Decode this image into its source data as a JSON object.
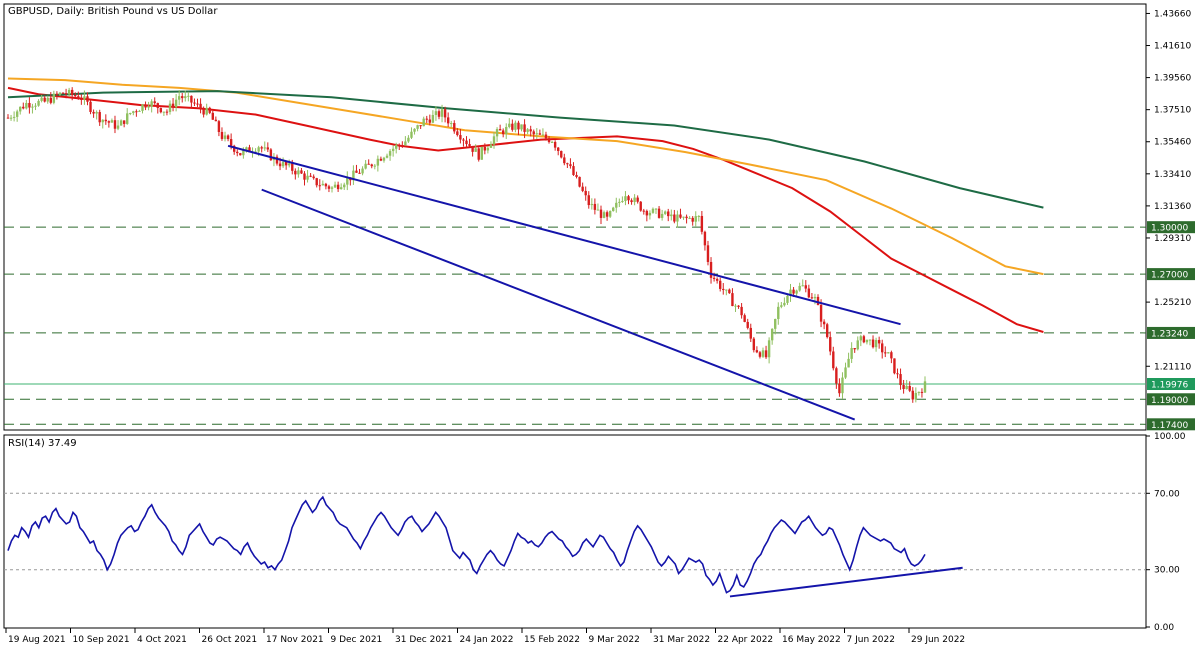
{
  "chart_data": [
    {
      "type": "candlestick",
      "title": "GBPUSD, Daily:  British Pound vs US Dollar",
      "y_range": [
        1.171,
        1.442
      ],
      "y_ticks": [
        "1.43660",
        "1.41610",
        "1.39560",
        "1.37510",
        "1.35460",
        "1.33410",
        "1.31360",
        "1.29310",
        "1.25210",
        "1.21110"
      ],
      "x_labels": [
        "19 Aug 2021",
        "10 Sep 2021",
        "4 Oct 2021",
        "26 Oct 2021",
        "17 Nov 2021",
        "9 Dec 2021",
        "31 Dec 2021",
        "24 Jan 2022",
        "15 Feb 2022",
        "9 Mar 2022",
        "31 Mar 2022",
        "22 Apr 2022",
        "16 May 2022",
        "7 Jun 2022",
        "29 Jun 2022"
      ],
      "horizontal_levels": [
        {
          "value": 1.3,
          "label": "1.30000"
        },
        {
          "value": 1.27,
          "label": "1.27000"
        },
        {
          "value": 1.2324,
          "label": "1.23240"
        },
        {
          "value": 1.19,
          "label": "1.19000"
        },
        {
          "value": 1.174,
          "label": "1.17400"
        }
      ],
      "current_price": {
        "value": 1.19976,
        "label": "1.19976"
      },
      "colors": {
        "up": "#90c060",
        "down": "#d81e1e",
        "ma_fast": "#dd1111",
        "ma_mid": "#f5a623",
        "ma_slow": "#1e6b45",
        "channel": "#1414aa",
        "level_fill": "#2d6b2d",
        "current_fill": "#1f9a5c",
        "current_line": "#3cb371"
      },
      "moving_averages": [
        {
          "color": "#dd1111",
          "points": [
            [
              0,
              1.389
            ],
            [
              8,
              1.385
            ],
            [
              20,
              1.382
            ],
            [
              35,
              1.378
            ],
            [
              50,
              1.376
            ],
            [
              65,
              1.372
            ],
            [
              80,
              1.364
            ],
            [
              95,
              1.356
            ],
            [
              103,
              1.352
            ],
            [
              113,
              1.349
            ],
            [
              125,
              1.352
            ],
            [
              140,
              1.356
            ],
            [
              160,
              1.358
            ],
            [
              172,
              1.355
            ],
            [
              180,
              1.35
            ],
            [
              188,
              1.343
            ],
            [
              196,
              1.335
            ],
            [
              206,
              1.325
            ],
            [
              216,
              1.31
            ],
            [
              224,
              1.295
            ],
            [
              232,
              1.28
            ],
            [
              240,
              1.27
            ],
            [
              248,
              1.26
            ],
            [
              256,
              1.25
            ],
            [
              265,
              1.238
            ],
            [
              272,
              1.233
            ]
          ]
        },
        {
          "color": "#f5a623",
          "points": [
            [
              0,
              1.395
            ],
            [
              15,
              1.394
            ],
            [
              30,
              1.391
            ],
            [
              45,
              1.389
            ],
            [
              60,
              1.386
            ],
            [
              75,
              1.38
            ],
            [
              90,
              1.374
            ],
            [
              105,
              1.368
            ],
            [
              120,
              1.362
            ],
            [
              140,
              1.358
            ],
            [
              160,
              1.355
            ],
            [
              178,
              1.348
            ],
            [
              195,
              1.34
            ],
            [
              215,
              1.33
            ],
            [
              232,
              1.312
            ],
            [
              248,
              1.293
            ],
            [
              262,
              1.275
            ],
            [
              272,
              1.27
            ]
          ]
        },
        {
          "color": "#1e6b45",
          "points": [
            [
              0,
              1.383
            ],
            [
              25,
              1.386
            ],
            [
              55,
              1.387
            ],
            [
              85,
              1.383
            ],
            [
              115,
              1.376
            ],
            [
              145,
              1.37
            ],
            [
              175,
              1.365
            ],
            [
              200,
              1.356
            ],
            [
              225,
              1.342
            ],
            [
              250,
              1.325
            ],
            [
              272,
              1.3125
            ]
          ]
        }
      ],
      "channel_lines": [
        {
          "from": [
            72,
            1.352
          ],
          "to": [
            292,
            1.238
          ]
        },
        {
          "from": [
            83,
            1.324
          ],
          "to": [
            277,
            1.177
          ]
        }
      ]
    },
    {
      "type": "line",
      "title": "RSI(14) 37.49",
      "y_range": [
        0,
        100
      ],
      "y_ticks": [
        "100.00",
        "70.00",
        "30.00",
        "0.00"
      ],
      "levels": [
        70,
        30
      ],
      "trend_line": {
        "from": [
          211,
          16
        ],
        "to": [
          279,
          31
        ]
      },
      "values": [
        40,
        45,
        48,
        47,
        52,
        50,
        47,
        53,
        55,
        52,
        57,
        58,
        55,
        60,
        62,
        58,
        56,
        54,
        55,
        60,
        58,
        52,
        50,
        47,
        44,
        45,
        40,
        38,
        35,
        30,
        33,
        38,
        44,
        48,
        50,
        52,
        53,
        50,
        51,
        55,
        58,
        62,
        64,
        60,
        57,
        55,
        53,
        50,
        45,
        43,
        40,
        38,
        42,
        48,
        50,
        52,
        54,
        50,
        47,
        44,
        43,
        46,
        47,
        46,
        45,
        43,
        41,
        40,
        38,
        42,
        44,
        40,
        37,
        35,
        33,
        34,
        31,
        32,
        30,
        33,
        35,
        40,
        45,
        52,
        56,
        60,
        64,
        66,
        63,
        60,
        62,
        66,
        68,
        64,
        62,
        60,
        56,
        54,
        53,
        52,
        49,
        46,
        44,
        41,
        45,
        48,
        52,
        55,
        58,
        60,
        58,
        55,
        52,
        50,
        48,
        51,
        55,
        57,
        58,
        55,
        53,
        50,
        52,
        54,
        57,
        60,
        58,
        55,
        52,
        46,
        40,
        38,
        36,
        39,
        37,
        35,
        30,
        28,
        32,
        35,
        38,
        40,
        38,
        35,
        33,
        32,
        36,
        40,
        45,
        49,
        47,
        46,
        44,
        45,
        43,
        42,
        44,
        47,
        49,
        50,
        48,
        46,
        45,
        42,
        40,
        37,
        38,
        40,
        44,
        46,
        44,
        42,
        45,
        48,
        47,
        44,
        41,
        39,
        35,
        32,
        34,
        40,
        45,
        50,
        53,
        51,
        48,
        45,
        42,
        38,
        34,
        32,
        34,
        37,
        35,
        33,
        28,
        30,
        33,
        36,
        35,
        34,
        35,
        33,
        27,
        25,
        22,
        24,
        28,
        23,
        18,
        19,
        22,
        27,
        22,
        21,
        24,
        28,
        33,
        36,
        38,
        42,
        45,
        49,
        52,
        54,
        56,
        55,
        53,
        51,
        49,
        52,
        55,
        56,
        58,
        55,
        52,
        50,
        48,
        49,
        52,
        51,
        47,
        43,
        38,
        34,
        30,
        35,
        42,
        48,
        52,
        50,
        48,
        47,
        46,
        45,
        46,
        45,
        44,
        41,
        40,
        39,
        41,
        36,
        33,
        32,
        33,
        35,
        38
      ]
    }
  ]
}
